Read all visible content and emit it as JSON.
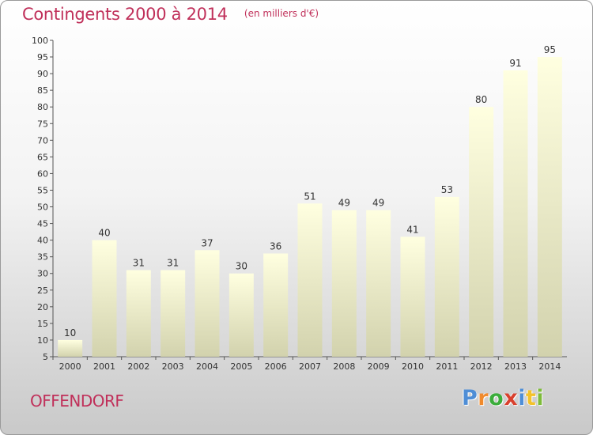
{
  "header": {
    "title": "Contingents 2000 à 2014",
    "subtitle": "(en milliers d'€)"
  },
  "footer": {
    "commune": "OFFENDORF",
    "logo_letters": [
      "P",
      "r",
      "o",
      "x",
      "i",
      "t",
      "i"
    ]
  },
  "chart_data": {
    "type": "bar",
    "title": "Contingents 2000 à 2014",
    "subtitle": "(en milliers d'€)",
    "xlabel": "",
    "ylabel": "",
    "categories": [
      "2000",
      "2001",
      "2002",
      "2003",
      "2004",
      "2005",
      "2006",
      "2007",
      "2008",
      "2009",
      "2010",
      "2011",
      "2012",
      "2013",
      "2014"
    ],
    "values": [
      10,
      40,
      31,
      31,
      37,
      30,
      36,
      51,
      49,
      49,
      41,
      53,
      80,
      91,
      95
    ],
    "ylim": [
      5,
      100
    ],
    "yticks": [
      5,
      10,
      15,
      20,
      25,
      30,
      35,
      40,
      45,
      50,
      55,
      60,
      65,
      70,
      75,
      80,
      85,
      90,
      95,
      100
    ],
    "grid": false,
    "legend": "none",
    "colors": {
      "bar_top": "#ffffe0",
      "bar_bottom": "#d2d2ad",
      "title": "#c0305a",
      "axis": "#555555"
    }
  }
}
